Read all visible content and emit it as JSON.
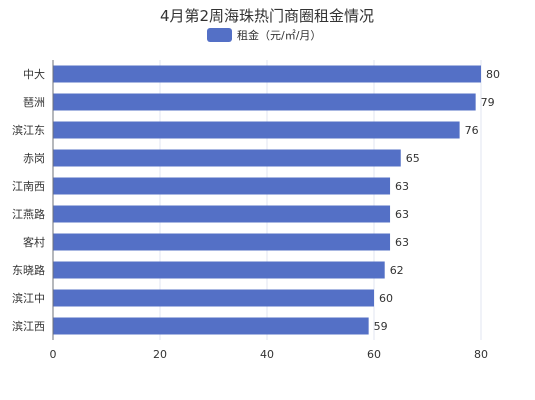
{
  "chart_data": {
    "type": "bar",
    "orientation": "horizontal",
    "title": "4月第2周海珠热门商圈租金情况",
    "categories": [
      "中大",
      "琶洲",
      "滨江东",
      "赤岗",
      "江南西",
      "江燕路",
      "客村",
      "东晓路",
      "滨江中",
      "滨江西"
    ],
    "series": [
      {
        "name": "租金（元/㎡/月）",
        "values": [
          80,
          79,
          76,
          65,
          63,
          63,
          63,
          62,
          60,
          59
        ],
        "color": "#5470c6"
      }
    ],
    "xlim": [
      0,
      80
    ],
    "xticks": [
      0,
      20,
      40,
      60,
      80
    ],
    "xlabel": "",
    "ylabel": "",
    "legend_position": "top-center",
    "grid": "vertical",
    "data_labels": true
  },
  "colors": {
    "bar": "#5470c6",
    "grid": "#e0e6f1",
    "axis": "#6e7079"
  }
}
